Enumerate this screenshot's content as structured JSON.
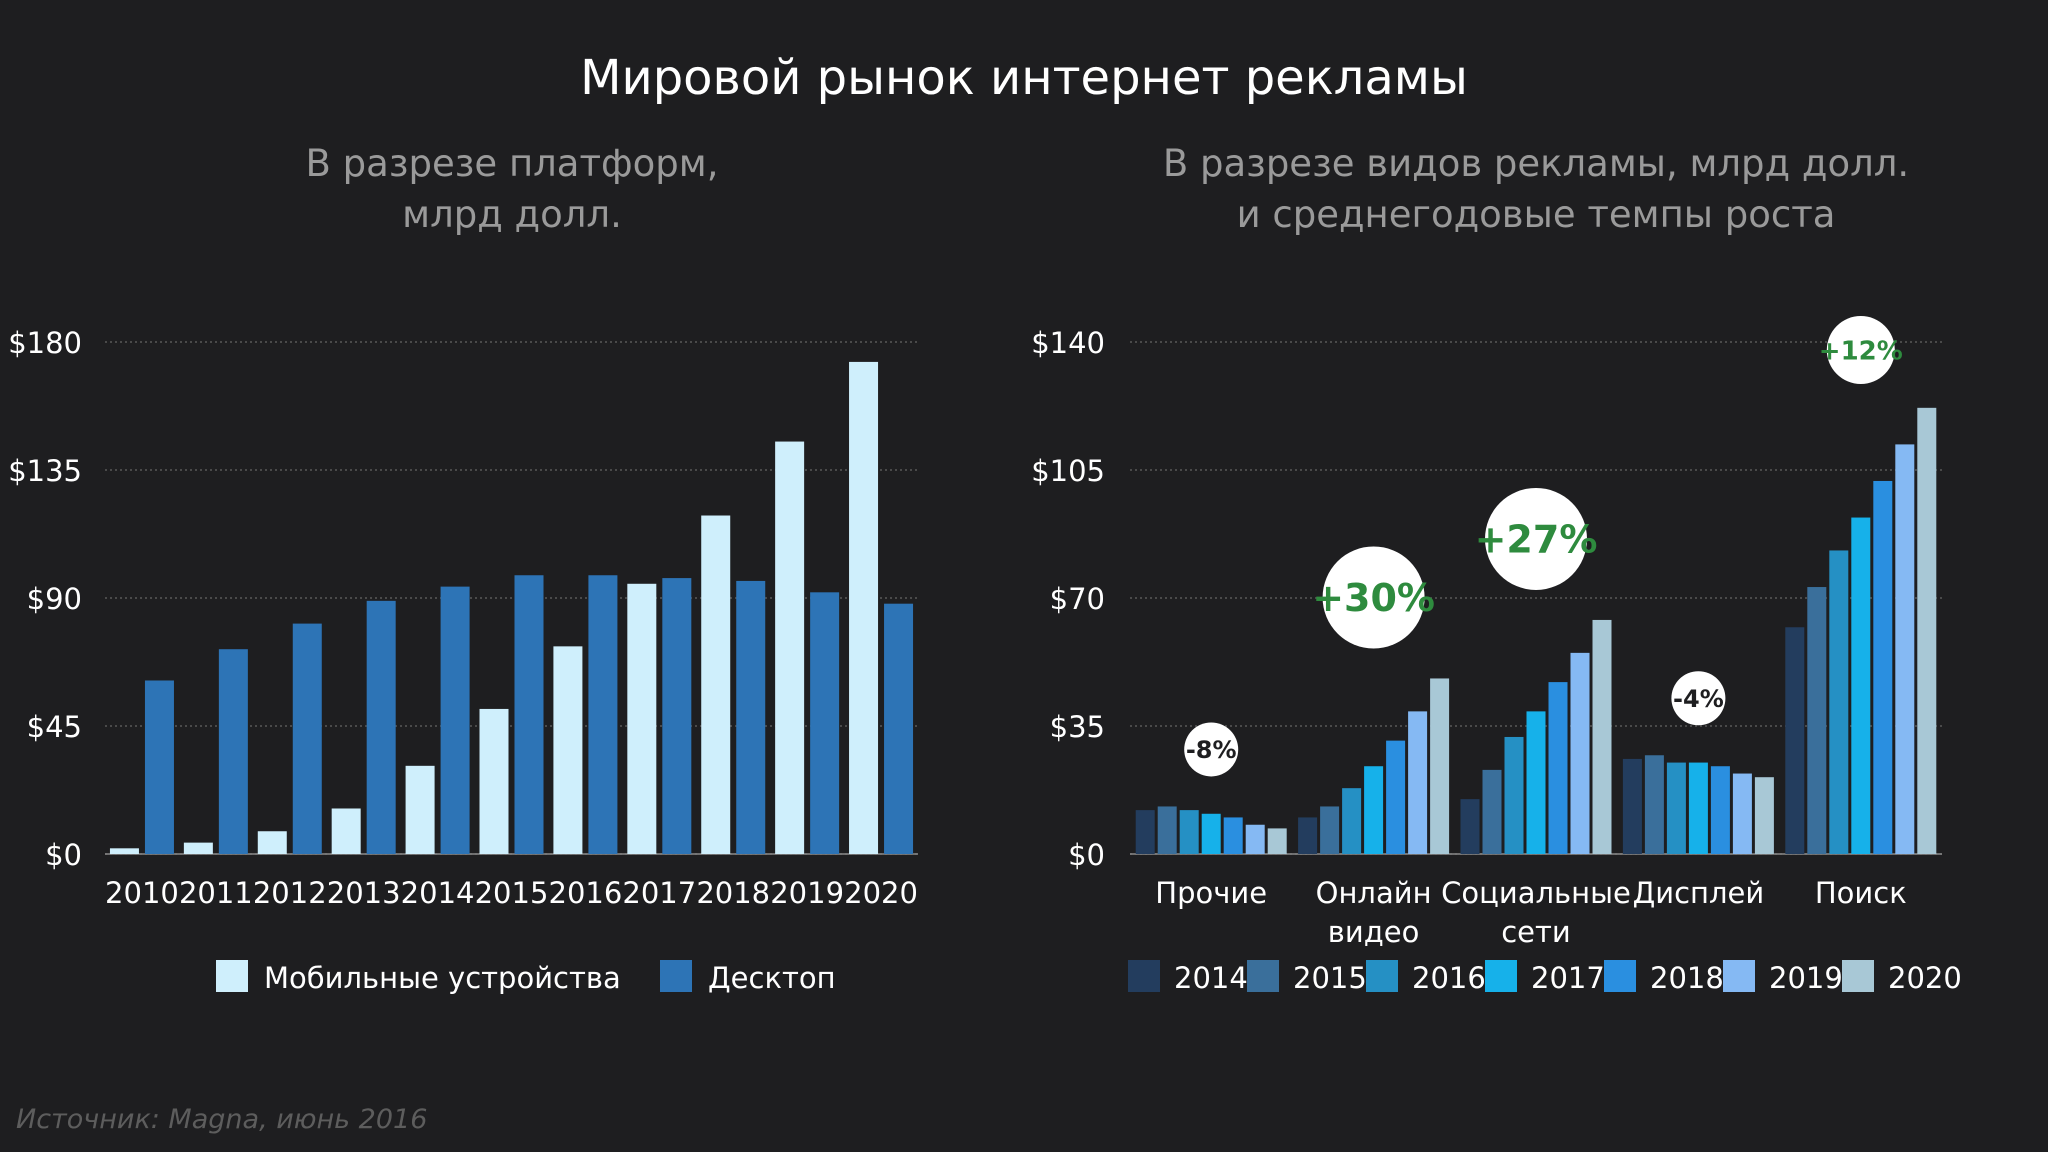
{
  "title": "Мировой рынок интернет рекламы",
  "source": "Источник: Magna, июнь 2016",
  "chart_data": [
    {
      "type": "bar",
      "subtitle": [
        "В разрезе платформ,",
        "млрд долл."
      ],
      "categories": [
        "2010",
        "2011",
        "2012",
        "2013",
        "2014",
        "2015",
        "2016",
        "2017",
        "2018",
        "2019",
        "2020"
      ],
      "series": [
        {
          "name": "Мобильные устройства",
          "color": "#cfeffc",
          "values": [
            2,
            4,
            8,
            16,
            31,
            51,
            73,
            95,
            119,
            145,
            173
          ]
        },
        {
          "name": "Десктоп",
          "color": "#2d74b6",
          "values": [
            61,
            72,
            81,
            89,
            94,
            98,
            98,
            97,
            96,
            92,
            88
          ]
        }
      ],
      "ylim": [
        0,
        180
      ],
      "yticks": [
        "$0",
        "$45",
        "$90",
        "$135",
        "$180"
      ],
      "ytick_values": [
        0,
        45,
        90,
        135,
        180
      ],
      "legend": "bottom",
      "grid": true
    },
    {
      "type": "bar",
      "subtitle": [
        "В разрезе видов рекламы, млрд долл.",
        "и среднегодовые темпы роста"
      ],
      "categories": [
        "Прочие",
        "Онлайн видео",
        "Социальные сети",
        "Дисплей",
        "Поиск"
      ],
      "category_lines": [
        [
          "Прочие"
        ],
        [
          "Онлайн",
          "видео"
        ],
        [
          "Социальные",
          "сети"
        ],
        [
          "Дисплей"
        ],
        [
          "Поиск"
        ]
      ],
      "series": [
        {
          "name": "2014",
          "color": "#233d5e",
          "values": [
            12,
            10,
            15,
            26,
            62
          ]
        },
        {
          "name": "2015",
          "color": "#3a6f9b",
          "values": [
            13,
            13,
            23,
            27,
            73
          ]
        },
        {
          "name": "2016",
          "color": "#2590c4",
          "values": [
            12,
            18,
            32,
            25,
            83
          ]
        },
        {
          "name": "2017",
          "color": "#16b1ea",
          "values": [
            11,
            24,
            39,
            25,
            92
          ]
        },
        {
          "name": "2018",
          "color": "#2a8fe0",
          "values": [
            10,
            31,
            47,
            24,
            102
          ]
        },
        {
          "name": "2019",
          "color": "#85b9f3",
          "values": [
            8,
            39,
            55,
            22,
            112
          ]
        },
        {
          "name": "2020",
          "color": "#a8c8d6",
          "values": [
            7,
            48,
            64,
            21,
            122
          ]
        }
      ],
      "growth_rates": [
        "-8%",
        "+30%",
        "+27%",
        "-4%",
        "+12%"
      ],
      "growth_color": "#2e8b3e",
      "ylim": [
        0,
        140
      ],
      "yticks": [
        "$0",
        "$35",
        "$70",
        "$105",
        "$140"
      ],
      "ytick_values": [
        0,
        35,
        70,
        105,
        140
      ],
      "legend": "bottom",
      "grid": true
    }
  ]
}
